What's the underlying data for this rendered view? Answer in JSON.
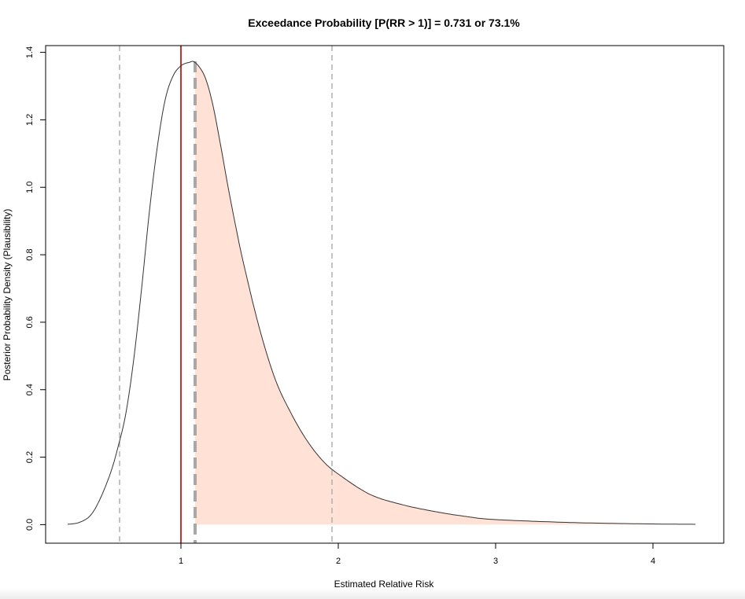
{
  "chart_data": {
    "type": "area",
    "title": "Exceedance Probability [P(RR > 1)] = 0.731 or 73.1%",
    "xlabel": "Estimated Relative Risk",
    "ylabel": "Posterior Probability Density (Plausibility)",
    "xlim": [
      0.14,
      4.45
    ],
    "ylim": [
      -0.055,
      1.42
    ],
    "x_ticks": [
      1,
      2,
      3,
      4
    ],
    "x_tick_labels": [
      "1",
      "2",
      "3",
      "4"
    ],
    "y_ticks": [
      0.0,
      0.2,
      0.4,
      0.6,
      0.8,
      1.0,
      1.2,
      1.4
    ],
    "y_tick_labels": [
      "0.0",
      "0.2",
      "0.4",
      "0.6",
      "0.8",
      "1.0",
      "1.2",
      "1.4"
    ],
    "grid": false,
    "series": [
      {
        "x": [
          0.28,
          0.35,
          0.42,
          0.48,
          0.55,
          0.6,
          0.65,
          0.7,
          0.75,
          0.8,
          0.85,
          0.9,
          0.95,
          1.0,
          1.05,
          1.09,
          1.15,
          1.2,
          1.25,
          1.3,
          1.35,
          1.4,
          1.5,
          1.6,
          1.7,
          1.8,
          1.9,
          2.0,
          2.2,
          2.4,
          2.6,
          2.8,
          3.0,
          3.5,
          4.0,
          4.27
        ],
        "y": [
          0.001,
          0.006,
          0.025,
          0.07,
          0.15,
          0.23,
          0.33,
          0.49,
          0.7,
          0.93,
          1.12,
          1.26,
          1.33,
          1.36,
          1.37,
          1.37,
          1.33,
          1.25,
          1.13,
          1.0,
          0.88,
          0.77,
          0.58,
          0.43,
          0.33,
          0.25,
          0.19,
          0.15,
          0.09,
          0.06,
          0.04,
          0.025,
          0.015,
          0.006,
          0.002,
          0.001
        ],
        "color": "#333333"
      }
    ],
    "shaded_region": {
      "x_from": 1.09,
      "x_to": 4.27,
      "color": "#ffe1d6"
    },
    "reference_lines": [
      {
        "x": 1.0,
        "color": "#c8312e",
        "style": "solid"
      },
      {
        "x": 1.09,
        "color": "#a8a8a8",
        "style": "dashed-thick"
      },
      {
        "x": 0.61,
        "color": "#b0b0b0",
        "style": "dashed"
      },
      {
        "x": 1.96,
        "color": "#b0b0b0",
        "style": "dashed"
      }
    ]
  }
}
